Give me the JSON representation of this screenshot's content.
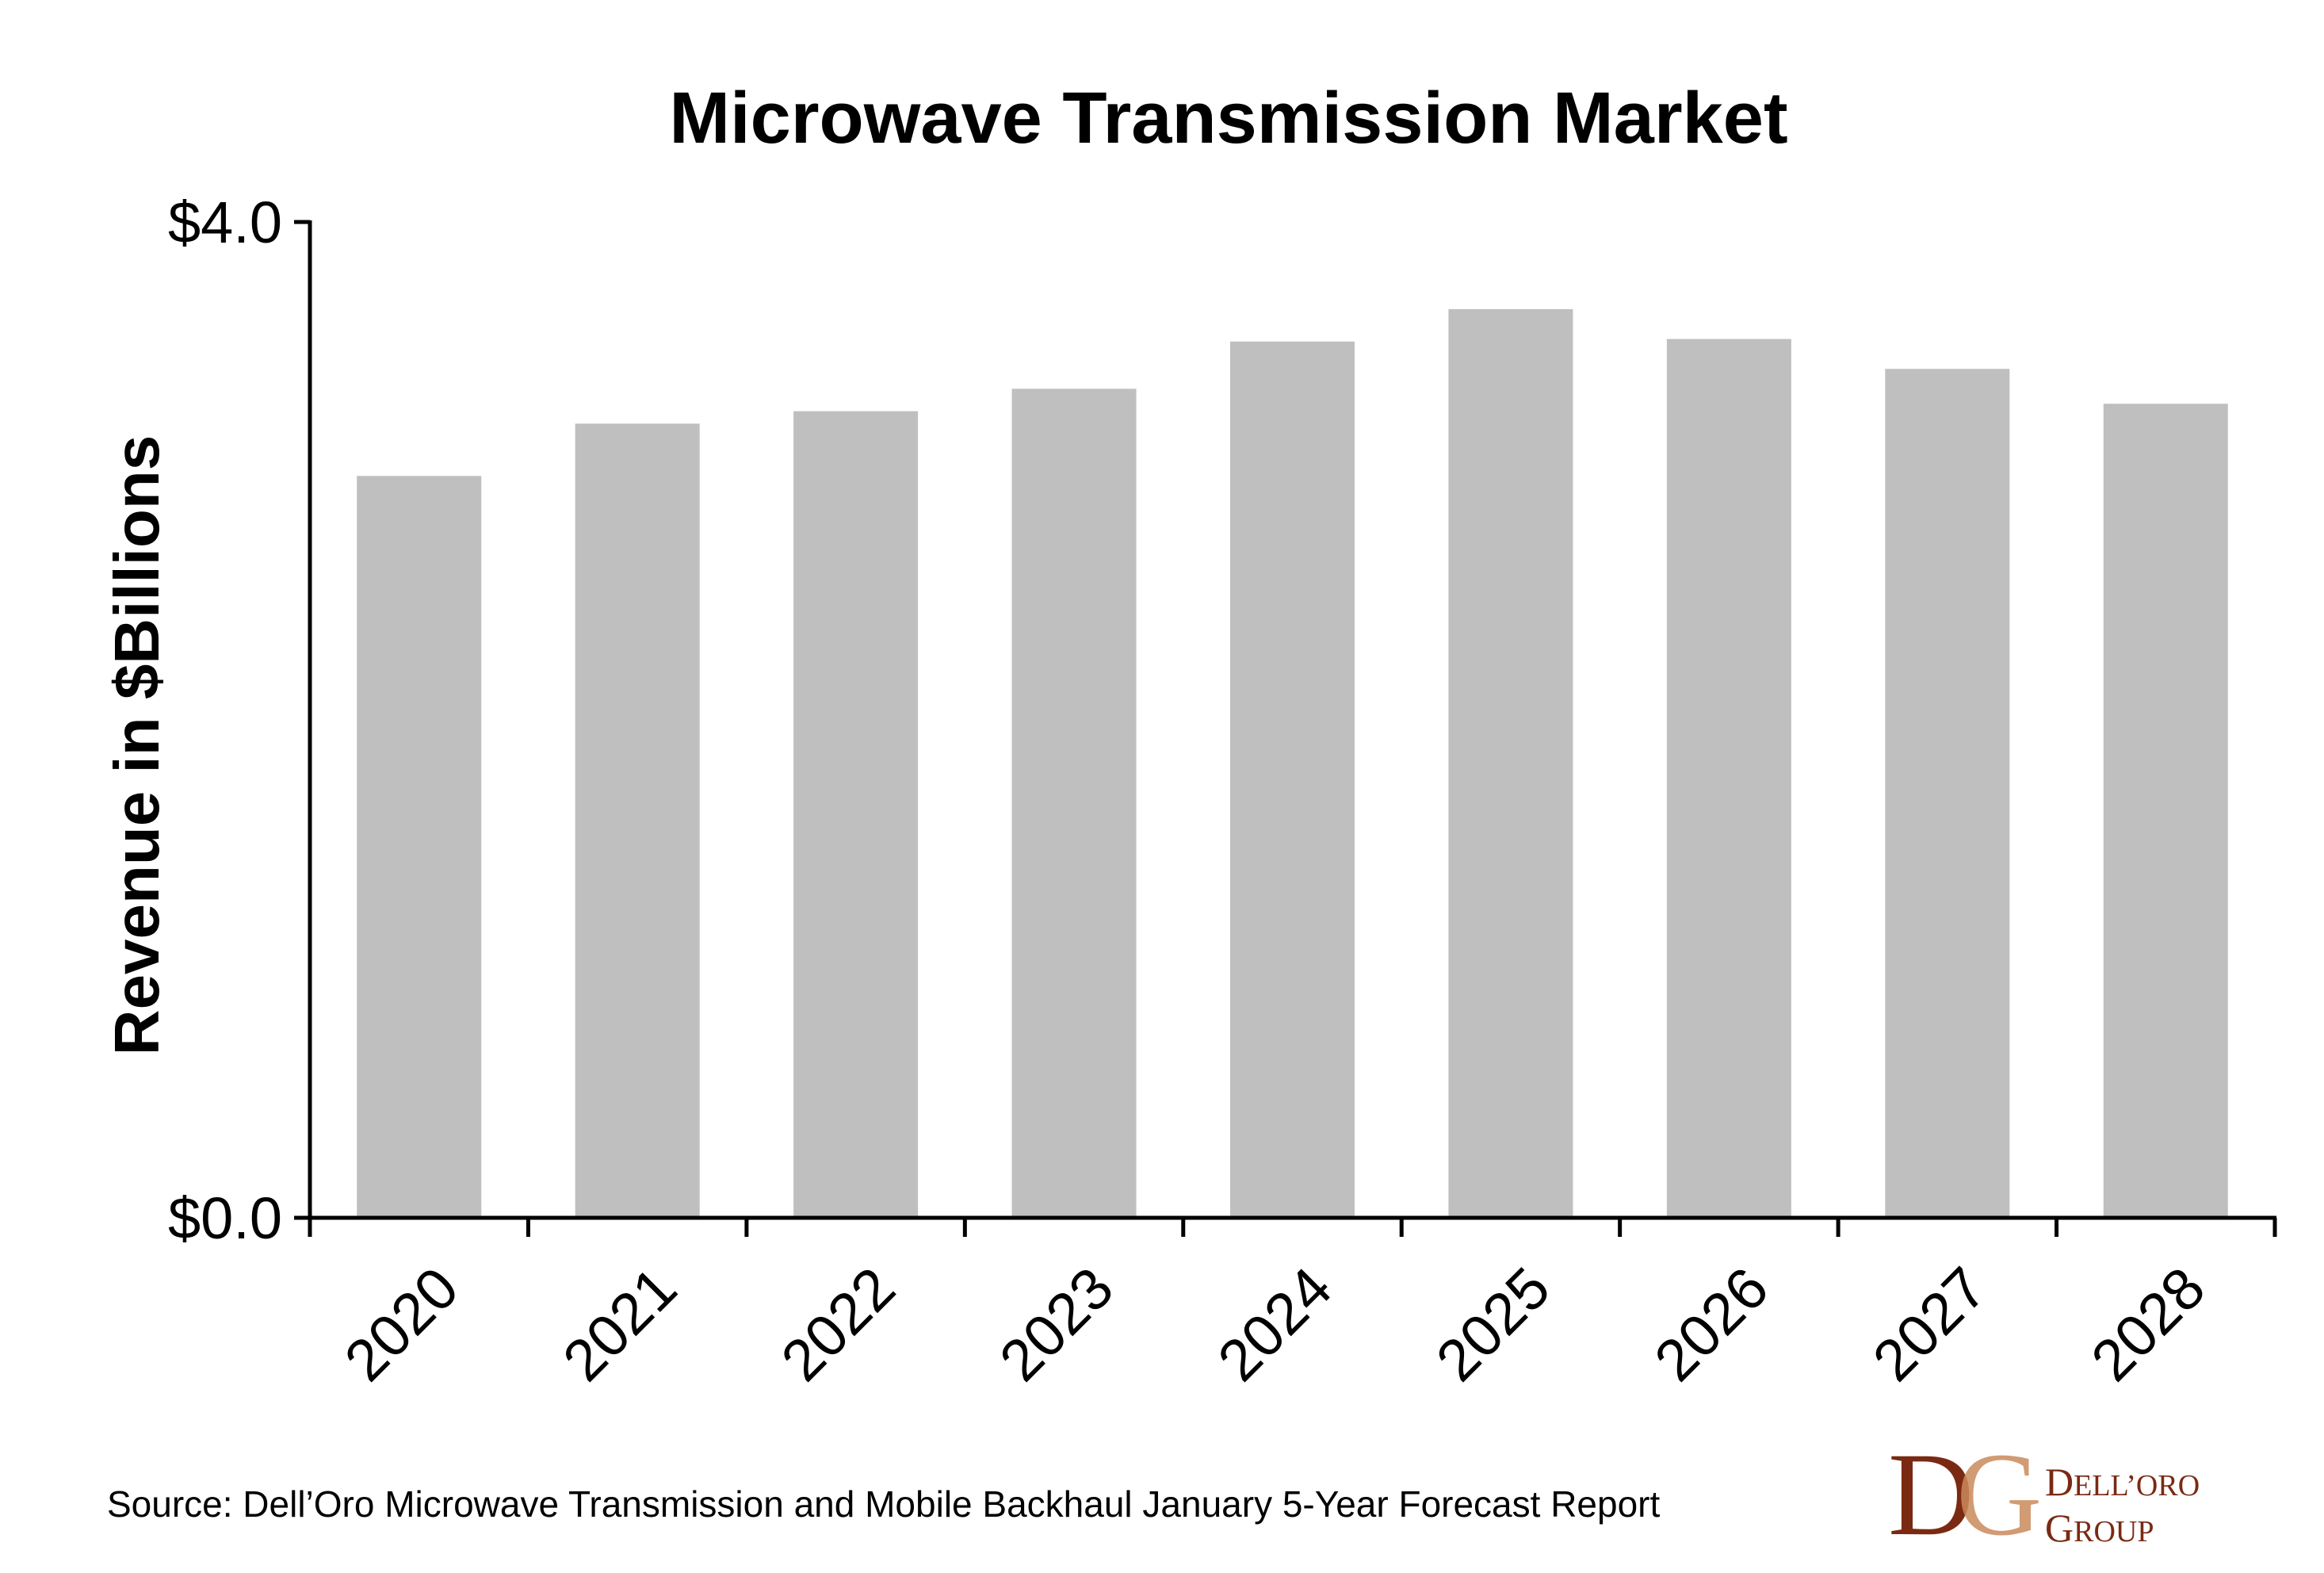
{
  "chart_data": {
    "type": "bar",
    "title": "Microwave Transmission Market",
    "ylabel": "Revenue in $Billions",
    "xlabel": "",
    "categories": [
      "2020",
      "2021",
      "2022",
      "2023",
      "2024",
      "2025",
      "2026",
      "2027",
      "2028"
    ],
    "values": [
      2.98,
      3.19,
      3.24,
      3.33,
      3.52,
      3.65,
      3.53,
      3.41,
      3.27
    ],
    "ylim": [
      0,
      4.0
    ],
    "yticks": [
      "$0.0",
      "$4.0"
    ],
    "grid": false,
    "legend": "none",
    "bar_color": "#bfbfbf",
    "axis_color": "#000000"
  },
  "source": "Source: Dell’Oro Microwave Transmission and Mobile Backhaul January 5-Year Forecast Report",
  "logo": {
    "monogram_d": "D",
    "monogram_g": "G",
    "line1_initial": "D",
    "line1_rest": "ELL’ORO",
    "line2_initial": "G",
    "line2_rest": "ROUP",
    "color_dark": "#7a2a12",
    "color_light": "#c98a5a"
  }
}
